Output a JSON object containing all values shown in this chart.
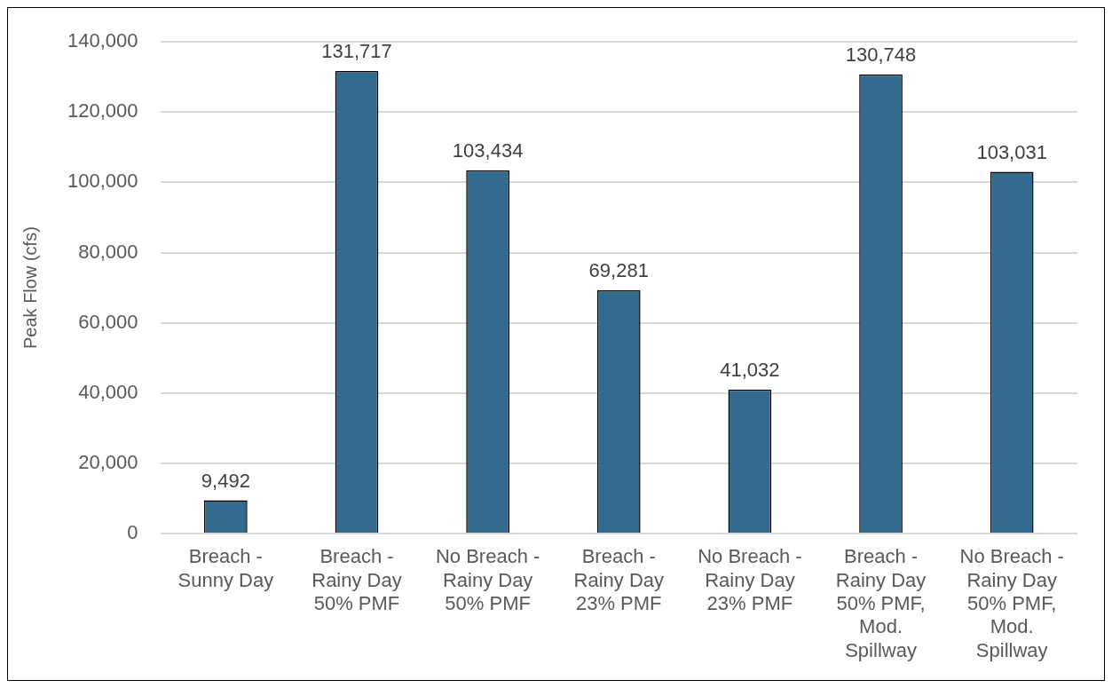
{
  "chart_data": {
    "type": "bar",
    "ylabel": "Peak Flow (cfs)",
    "categories": [
      "Breach - Sunny Day",
      "Breach - Rainy Day 50% PMF",
      "No Breach - Rainy Day 50% PMF",
      "Breach - Rainy Day 23% PMF",
      "No Breach - Rainy Day 23% PMF",
      "Breach - Rainy Day 50% PMF, Mod. Spillway",
      "No Breach - Rainy Day 50% PMF, Mod. Spillway"
    ],
    "values": [
      9492,
      131717,
      103434,
      69281,
      41032,
      130748,
      103031
    ],
    "value_labels": [
      "9,492",
      "131,717",
      "103,434",
      "69,281",
      "41,032",
      "130,748",
      "103,031"
    ],
    "color": "#346a8e",
    "ylim": [
      0,
      140000
    ],
    "yticks": [
      0,
      {
        "value": 20000,
        "label": "20,000"
      },
      {
        "value": 40000,
        "label": "40,000"
      },
      {
        "value": 60000,
        "label": "60,000"
      },
      {
        "value": 80000,
        "label": "80,000"
      },
      {
        "value": 100000,
        "label": "100,000"
      },
      {
        "value": 120000,
        "label": "120,000"
      },
      {
        "value": 140000,
        "label": "140,000"
      }
    ],
    "grid": "y",
    "legend": false
  }
}
